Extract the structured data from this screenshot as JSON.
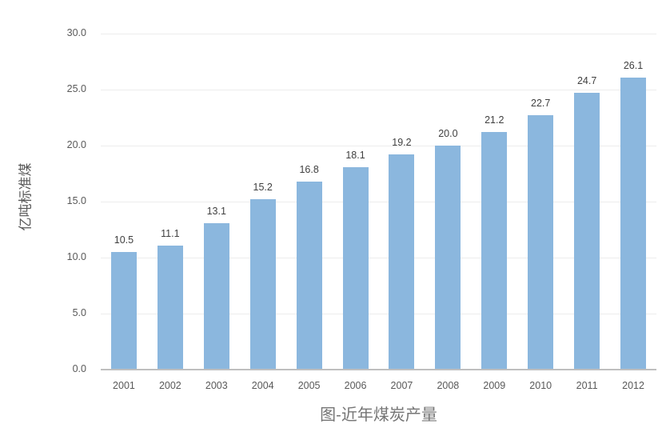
{
  "chart_data": {
    "type": "bar",
    "title": "图-近年煤炭产量",
    "ylabel": "亿吨标准煤",
    "xlabel": "",
    "categories": [
      "2001",
      "2002",
      "2003",
      "2004",
      "2005",
      "2006",
      "2007",
      "2008",
      "2009",
      "2010",
      "2011",
      "2012"
    ],
    "values": [
      10.5,
      11.1,
      13.1,
      15.2,
      16.8,
      18.1,
      19.2,
      20.0,
      21.2,
      22.7,
      24.7,
      26.1
    ],
    "value_labels": [
      "10.5",
      "11.1",
      "13.1",
      "15.2",
      "16.8",
      "18.1",
      "19.2",
      "20.0",
      "21.2",
      "22.7",
      "24.7",
      "26.1"
    ],
    "ylim": [
      0,
      30
    ],
    "yticks": [
      0,
      5,
      10,
      15,
      20,
      25,
      30
    ],
    "ytick_labels": [
      "0.0",
      "5.0",
      "10.0",
      "15.0",
      "20.0",
      "25.0",
      "30.0"
    ],
    "grid": true,
    "legend_position": "none",
    "colors": {
      "bar": "#8BB7DE",
      "gridline": "#ECECEC",
      "axis_line": "#BFBFBF",
      "tick_label": "#595959",
      "value_label": "#404040",
      "axis_title": "#595959",
      "title": "#757575",
      "background": "#FFFFFF"
    }
  }
}
